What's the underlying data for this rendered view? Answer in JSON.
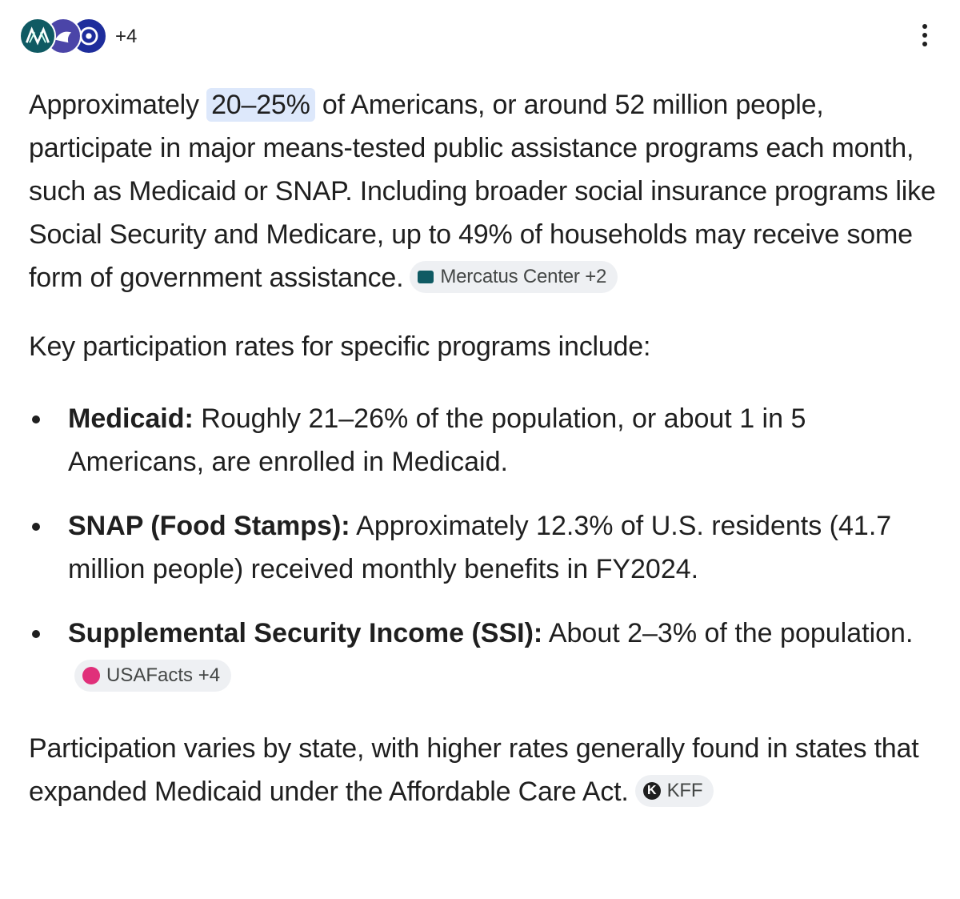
{
  "header": {
    "source_count": "+4",
    "menu_icon": "more-vert-icon"
  },
  "paragraphs": {
    "intro": {
      "before_highlight": "Approximately ",
      "highlight": "20–25%",
      "after_highlight": " of Americans, or around 52 million people, participate in major means-tested public assistance programs each month, such as Medicaid or SNAP. Including broader social insurance programs like Social Security and Medicare, up to 49% of households may receive some form of government assistance.",
      "chip_label": "Mercatus Center +2"
    },
    "key_rates": "Key participation rates for specific programs include:",
    "bullets": [
      {
        "term": "Medicaid:",
        "text": " Roughly 21–26% of the population, or about 1 in 5 Americans, are enrolled in Medicaid."
      },
      {
        "term": "SNAP (Food Stamps):",
        "text": " Approximately 12.3% of U.S. residents (41.7 million people) received monthly benefits in FY2024."
      },
      {
        "term": "Supplemental Security Income (SSI):",
        "text": " About 2–3% of the population.",
        "chip_label": "USAFacts +4"
      }
    ],
    "closing": {
      "text": "Participation varies by state, with higher rates generally found in states that expanded Medicaid under the Affordable Care Act.",
      "chip_label": "KFF",
      "chip_icon_letter": "K"
    }
  },
  "colors": {
    "highlight_bg": "#dde8fb",
    "chip_bg": "#eef0f3",
    "text": "#1f1f1f"
  }
}
